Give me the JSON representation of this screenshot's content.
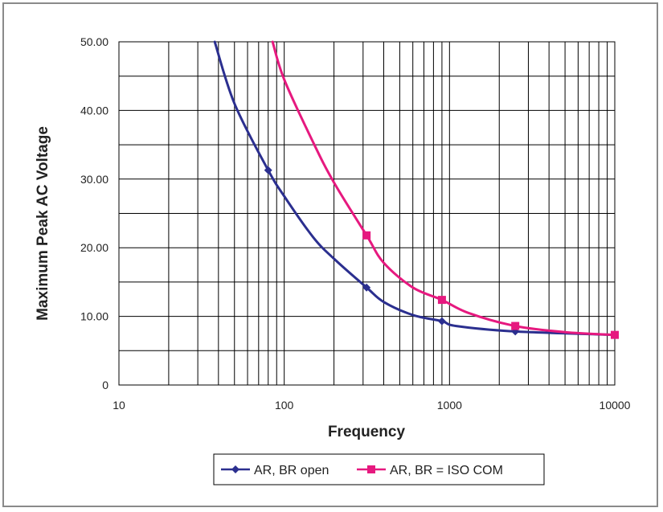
{
  "chart_data": {
    "type": "line",
    "title": "",
    "xlabel": "Frequency",
    "ylabel": "Maximum Peak AC Voltage",
    "x_scale": "log",
    "xlim": [
      10,
      10000
    ],
    "ylim": [
      0,
      50
    ],
    "x_ticks": [
      "10",
      "100",
      "1000",
      "10000"
    ],
    "y_ticks": [
      "0",
      "10.00",
      "20.00",
      "30.00",
      "40.00",
      "50.00"
    ],
    "y_tick_values": [
      0,
      10,
      20,
      30,
      40,
      50
    ],
    "x_tick_values": [
      10,
      100,
      1000,
      10000
    ],
    "grid": true,
    "legend_position": "bottom",
    "series": [
      {
        "name": "AR, BR open",
        "color": "#2b2f8f",
        "marker": "diamond",
        "x": [
          38,
          50,
          80,
          100,
          150,
          200,
          315,
          400,
          600,
          900,
          1100,
          2500,
          10000
        ],
        "y": [
          50,
          41,
          31.3,
          27.5,
          21.5,
          18.4,
          14.2,
          12.1,
          10.2,
          9.3,
          8.6,
          7.8,
          7.3
        ],
        "marker_x": [
          80,
          315,
          900,
          2500
        ],
        "marker_y": [
          31.3,
          14.2,
          9.3,
          7.8
        ]
      },
      {
        "name": "AR, BR = ISO COM",
        "color": "#e6197f",
        "marker": "square",
        "x": [
          85,
          100,
          150,
          200,
          315,
          400,
          600,
          900,
          1300,
          2500,
          5000,
          10000
        ],
        "y": [
          50,
          44.5,
          35.3,
          29.5,
          21.8,
          17.8,
          14.2,
          12.4,
          10.5,
          8.6,
          7.7,
          7.3
        ],
        "marker_x": [
          315,
          900,
          2500,
          10000
        ],
        "marker_y": [
          21.8,
          12.4,
          8.6,
          7.3
        ]
      }
    ]
  }
}
